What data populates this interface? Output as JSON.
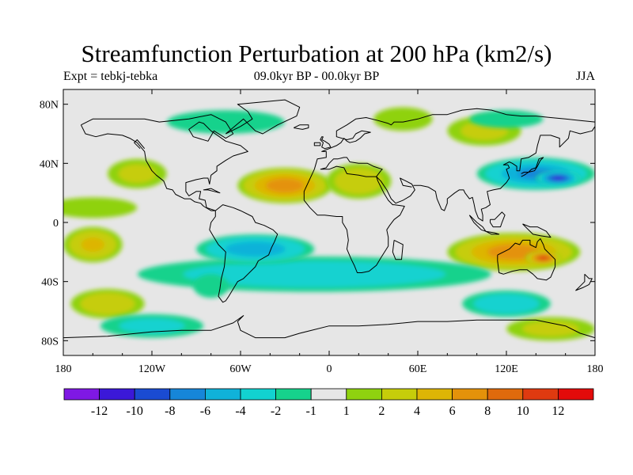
{
  "title": "Streamfunction Perturbation at 200 hPa (km2/s)",
  "subtitle_left": "Expt = tebkj-tebka",
  "subtitle_center": "09.0kyr BP - 00.0kyr BP",
  "subtitle_right": "JJA",
  "map": {
    "projection": "cylindrical-equidistant",
    "lon_range": [
      -180,
      180
    ],
    "lat_range": [
      -90,
      90
    ],
    "x_ticks": [
      {
        "value": -180,
        "label": "180"
      },
      {
        "value": -120,
        "label": "120W"
      },
      {
        "value": -60,
        "label": "60W"
      },
      {
        "value": 0,
        "label": "0"
      },
      {
        "value": 60,
        "label": "60E"
      },
      {
        "value": 120,
        "label": "120E"
      },
      {
        "value": 180,
        "label": "180"
      }
    ],
    "y_ticks": [
      {
        "value": 80,
        "label": "80N"
      },
      {
        "value": 40,
        "label": "40N"
      },
      {
        "value": 0,
        "label": "0"
      },
      {
        "value": -40,
        "label": "40S"
      },
      {
        "value": -80,
        "label": "80S"
      }
    ],
    "background_color": "#e6e6e6"
  },
  "colorbar": {
    "colors": [
      "#7f18e4",
      "#3b18d8",
      "#1a4bd2",
      "#1686d9",
      "#10b2d9",
      "#12d2d0",
      "#16d28c",
      "#e6e6e6",
      "#8fd20f",
      "#c6cd0a",
      "#ddb505",
      "#e4920a",
      "#e06a0c",
      "#df3a10",
      "#e30b0a"
    ],
    "labels": [
      "-12",
      "-10",
      "-8",
      "-6",
      "-4",
      "-2",
      "-1",
      "1",
      "2",
      "4",
      "6",
      "8",
      "10",
      "12"
    ]
  },
  "chart_data": {
    "type": "heatmap",
    "field": "200 hPa streamfunction perturbation",
    "units": "km2/s",
    "contour_levels": [
      -12,
      -10,
      -8,
      -6,
      -4,
      -2,
      -1,
      1,
      2,
      4,
      6,
      8,
      10,
      12
    ],
    "features": [
      {
        "lon": -30,
        "lat": 25,
        "rx": 32,
        "ry": 12,
        "value": 7
      },
      {
        "lon": 20,
        "lat": 28,
        "rx": 22,
        "ry": 12,
        "value": 3
      },
      {
        "lon": -130,
        "lat": 33,
        "rx": 20,
        "ry": 10,
        "value": 2
      },
      {
        "lon": -160,
        "lat": 10,
        "rx": 30,
        "ry": 7,
        "value": 1.5
      },
      {
        "lon": 125,
        "lat": -20,
        "rx": 45,
        "ry": 13,
        "value": 7
      },
      {
        "lon": 145,
        "lat": -24,
        "rx": 12,
        "ry": 5,
        "value": 10
      },
      {
        "lon": -160,
        "lat": -15,
        "rx": 20,
        "ry": 12,
        "value": 4
      },
      {
        "lon": -150,
        "lat": -55,
        "rx": 25,
        "ry": 10,
        "value": 3
      },
      {
        "lon": 150,
        "lat": -72,
        "rx": 30,
        "ry": 8,
        "value": 2
      },
      {
        "lon": 105,
        "lat": 62,
        "rx": 25,
        "ry": 10,
        "value": 2
      },
      {
        "lon": 50,
        "lat": 70,
        "rx": 20,
        "ry": 8,
        "value": 1.5
      },
      {
        "lon": -10,
        "lat": -35,
        "rx": 120,
        "ry": 12,
        "value": -3
      },
      {
        "lon": -50,
        "lat": -18,
        "rx": 40,
        "ry": 10,
        "value": -5
      },
      {
        "lon": 140,
        "lat": 33,
        "rx": 40,
        "ry": 11,
        "value": -6
      },
      {
        "lon": 155,
        "lat": 30,
        "rx": 15,
        "ry": 5,
        "value": -10
      },
      {
        "lon": 120,
        "lat": -55,
        "rx": 30,
        "ry": 9,
        "value": -3
      },
      {
        "lon": -120,
        "lat": -70,
        "rx": 35,
        "ry": 8,
        "value": -2
      },
      {
        "lon": -70,
        "lat": 68,
        "rx": 40,
        "ry": 8,
        "value": -1.5
      },
      {
        "lon": -80,
        "lat": -43,
        "rx": 12,
        "ry": 8,
        "value": -1.5
      },
      {
        "lon": 120,
        "lat": 70,
        "rx": 25,
        "ry": 6,
        "value": -1.5
      }
    ]
  }
}
